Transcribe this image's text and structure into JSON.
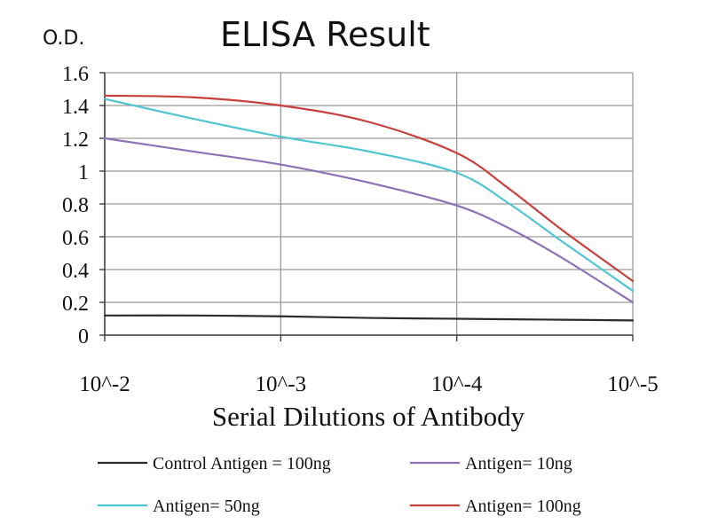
{
  "chart_data": {
    "type": "line",
    "title": "ELISA Result",
    "ylabel": "O.D.",
    "xlabel": "Serial Dilutions of Antibody",
    "categories": [
      "10^-2",
      "10^-3",
      "10^-4",
      "10^-5"
    ],
    "x": [
      -2,
      -3,
      -4,
      -5
    ],
    "ylim": [
      0,
      1.6
    ],
    "yticks": [
      0,
      0.2,
      0.4,
      0.6,
      0.8,
      1,
      1.2,
      1.4,
      1.6
    ],
    "ytick_labels": [
      "0",
      "0.2",
      "0.4",
      "0.6",
      "0.8",
      "1",
      "1.2",
      "1.4",
      "1.6"
    ],
    "grid": true,
    "legend_position": "bottom",
    "series": [
      {
        "name": "Control Antigen = 100ng",
        "color": "#2b2b2b",
        "points": [
          [
            -2,
            0.12
          ],
          [
            -2.5,
            0.12
          ],
          [
            -3,
            0.115
          ],
          [
            -3.5,
            0.105
          ],
          [
            -4,
            0.1
          ],
          [
            -4.5,
            0.095
          ],
          [
            -5,
            0.09
          ]
        ]
      },
      {
        "name": "Antigen= 10ng",
        "color": "#8b72b8",
        "points": [
          [
            -2,
            1.2
          ],
          [
            -2.5,
            1.12
          ],
          [
            -3,
            1.04
          ],
          [
            -3.5,
            0.93
          ],
          [
            -4,
            0.79
          ],
          [
            -4.3,
            0.65
          ],
          [
            -4.6,
            0.47
          ],
          [
            -5,
            0.2
          ]
        ]
      },
      {
        "name": "Antigen= 50ng",
        "color": "#4fc4d2",
        "points": [
          [
            -2,
            1.44
          ],
          [
            -2.5,
            1.32
          ],
          [
            -3,
            1.21
          ],
          [
            -3.5,
            1.12
          ],
          [
            -4,
            0.99
          ],
          [
            -4.3,
            0.8
          ],
          [
            -4.6,
            0.57
          ],
          [
            -5,
            0.27
          ]
        ]
      },
      {
        "name": "Antigen= 100ng",
        "color": "#c8403c",
        "points": [
          [
            -2,
            1.46
          ],
          [
            -2.5,
            1.45
          ],
          [
            -3,
            1.4
          ],
          [
            -3.5,
            1.3
          ],
          [
            -4,
            1.11
          ],
          [
            -4.3,
            0.89
          ],
          [
            -4.6,
            0.64
          ],
          [
            -5,
            0.33
          ]
        ]
      }
    ]
  }
}
